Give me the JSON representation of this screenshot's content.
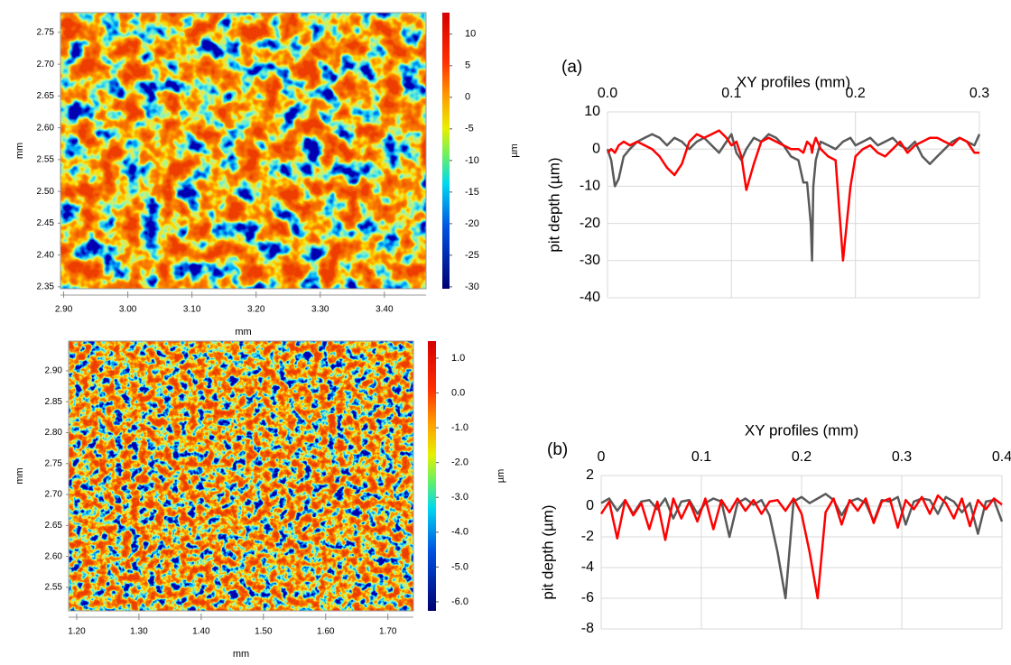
{
  "chart_data": [
    {
      "type": "heatmap",
      "xlabel": "mm",
      "ylabel": "mm",
      "clabel": "µm",
      "xlim": [
        2.895,
        3.465
      ],
      "ylim": [
        2.347,
        2.781
      ],
      "xticks": [
        {
          "value": 2.9,
          "label": "2.90"
        },
        {
          "value": 3,
          "label": "3.00"
        },
        {
          "value": 3.1,
          "label": "3.10"
        },
        {
          "value": 3.2,
          "label": "3.20"
        },
        {
          "value": 3.3,
          "label": "3.30"
        },
        {
          "value": 3.4,
          "label": "3.40"
        }
      ],
      "yticks": [
        2.35,
        {
          "value": 2.4,
          "label": "2.40"
        },
        2.45,
        {
          "value": 2.5,
          "label": "2.50"
        },
        2.55,
        {
          "value": 2.6,
          "label": "2.60"
        },
        2.65,
        {
          "value": 2.7,
          "label": "2.70"
        },
        2.75
      ],
      "clim": [
        -30.3,
        13.4
      ],
      "cticks": [
        10,
        5,
        0,
        -5,
        -10,
        -15,
        -20,
        -25,
        -30
      ]
    },
    {
      "type": "heatmap",
      "xlabel": "mm",
      "ylabel": "mm",
      "clabel": "µm",
      "xlim": [
        1.187,
        1.741
      ],
      "ylim": [
        2.512,
        2.948
      ],
      "xticks": [
        {
          "value": 1.2,
          "label": "1.20"
        },
        {
          "value": 1.3,
          "label": "1.30"
        },
        {
          "value": 1.4,
          "label": "1.40"
        },
        {
          "value": 1.5,
          "label": "1.50"
        },
        {
          "value": 1.6,
          "label": "1.60"
        },
        {
          "value": 1.7,
          "label": "1.70"
        }
      ],
      "yticks": [
        2.55,
        {
          "value": 2.6,
          "label": "2.60"
        },
        2.65,
        {
          "value": 2.7,
          "label": "2.70"
        },
        2.75,
        {
          "value": 2.8,
          "label": "2.80"
        },
        2.85,
        {
          "value": 2.9,
          "label": "2.90"
        }
      ],
      "clim": [
        -6.26,
        1.49
      ],
      "cticks": [
        {
          "value": 1,
          "label": "1.0"
        },
        {
          "value": 0,
          "label": "0.0"
        },
        {
          "value": -1,
          "label": "-1.0"
        },
        {
          "value": -2,
          "label": "-2.0"
        },
        {
          "value": -3,
          "label": "-3.0"
        },
        {
          "value": -4,
          "label": "-4.0"
        },
        {
          "value": -5,
          "label": "-5.0"
        },
        {
          "value": -6,
          "label": "-6.0"
        }
      ]
    },
    {
      "type": "line",
      "panel_label": "(a)",
      "xlabel": "XY profiles (mm)",
      "ylabel": "pit depth (µm)",
      "xlim": [
        0,
        0.3
      ],
      "ylim": [
        -40,
        10
      ],
      "xticks": [
        {
          "value": 0,
          "label": "0.0"
        },
        0.1,
        0.2,
        0.3
      ],
      "yticks": [
        -40,
        -30,
        -20,
        -10,
        0,
        10
      ],
      "grid": true,
      "x": [
        0,
        0.003,
        0.006,
        0.009,
        0.013,
        0.018,
        0.024,
        0.03,
        0.036,
        0.042,
        0.048,
        0.054,
        0.06,
        0.066,
        0.072,
        0.078,
        0.084,
        0.09,
        0.096,
        0.1,
        0.104,
        0.108,
        0.112,
        0.118,
        0.124,
        0.13,
        0.136,
        0.142,
        0.148,
        0.154,
        0.158,
        0.161,
        0.164,
        0.165,
        0.166,
        0.168,
        0.172,
        0.178,
        0.184,
        0.19,
        0.196,
        0.2,
        0.206,
        0.212,
        0.218,
        0.224,
        0.23,
        0.236,
        0.242,
        0.248,
        0.254,
        0.26,
        0.266,
        0.272,
        0.278,
        0.284,
        0.29,
        0.296,
        0.3
      ],
      "series": [
        {
          "color": "#595959",
          "values": [
            0,
            -3,
            -10,
            -8,
            -2,
            0,
            2,
            3,
            4,
            3,
            1,
            3,
            2,
            0,
            2,
            3,
            1,
            -1,
            2,
            4,
            -1,
            -3,
            0,
            3,
            2,
            4,
            3,
            1,
            -2,
            -3,
            -9,
            -9,
            -20,
            -30,
            -10,
            -3,
            2,
            1,
            0,
            2,
            3,
            1,
            2,
            3,
            1,
            2,
            3,
            1,
            0,
            2,
            -2,
            -4,
            -2,
            0,
            2,
            3,
            2,
            1,
            4
          ]
        },
        {
          "color": "#ff0000",
          "values": [
            -1,
            0,
            -1,
            1,
            2,
            1,
            2,
            1,
            0,
            -2,
            -5,
            -7,
            -4,
            2,
            4,
            3,
            4,
            5,
            3,
            1,
            2,
            -2,
            -11,
            -4,
            2,
            3,
            2,
            1,
            0,
            0,
            -1,
            2,
            1,
            -1,
            1,
            3,
            0,
            -2,
            -3,
            -30,
            -10,
            -2,
            0,
            1,
            -1,
            -2,
            0,
            2,
            -1,
            1,
            2,
            3,
            3,
            2,
            1,
            3,
            2,
            -1,
            -1
          ]
        }
      ]
    },
    {
      "type": "line",
      "panel_label": "(b)",
      "xlabel": "XY profiles (mm)",
      "ylabel": "pit depth (µm)",
      "xlim": [
        0,
        0.4
      ],
      "ylim": [
        -8,
        2
      ],
      "xticks": [
        0,
        0.1,
        0.2,
        0.3,
        0.4
      ],
      "yticks": [
        -8,
        -6,
        -4,
        -2,
        0,
        2
      ],
      "grid": true,
      "x": [
        0,
        0.008,
        0.016,
        0.024,
        0.032,
        0.04,
        0.048,
        0.056,
        0.064,
        0.072,
        0.08,
        0.088,
        0.096,
        0.104,
        0.112,
        0.12,
        0.128,
        0.136,
        0.144,
        0.152,
        0.16,
        0.168,
        0.176,
        0.184,
        0.192,
        0.2,
        0.208,
        0.216,
        0.224,
        0.232,
        0.24,
        0.248,
        0.256,
        0.264,
        0.272,
        0.28,
        0.288,
        0.296,
        0.304,
        0.312,
        0.32,
        0.328,
        0.336,
        0.344,
        0.352,
        0.36,
        0.368,
        0.376,
        0.384,
        0.392,
        0.4
      ],
      "series": [
        {
          "color": "#595959",
          "values": [
            0.2,
            0.5,
            -0.3,
            0.4,
            -0.5,
            0.3,
            0.4,
            -0.2,
            0.5,
            -0.8,
            0.3,
            0.4,
            -0.5,
            0.2,
            0.5,
            0.3,
            -2,
            0.2,
            0.5,
            0.1,
            0.4,
            -0.6,
            -3,
            -6,
            0.3,
            0.6,
            0.2,
            0.5,
            0.8,
            0.4,
            -0.6,
            0.3,
            0.5,
            0.2,
            -1,
            0.4,
            0.3,
            0.6,
            -1.2,
            0.3,
            0.5,
            0.4,
            -0.5,
            0.6,
            0.3,
            -0.4,
            0.2,
            -1.8,
            0.3,
            0.4,
            -1
          ]
        },
        {
          "color": "#ff0000",
          "values": [
            -0.5,
            0.3,
            -2.1,
            0.4,
            -0.6,
            0.2,
            -1.5,
            0.3,
            -2.2,
            0.5,
            -0.8,
            0.3,
            -1,
            0.5,
            -1.5,
            0.4,
            -0.4,
            0.5,
            -0.3,
            0.4,
            -0.5,
            0.3,
            0.4,
            -0.3,
            0.5,
            -0.5,
            -3,
            -6,
            -0.4,
            0.5,
            -1.2,
            0.4,
            -0.3,
            0.5,
            -1.1,
            0.3,
            0.5,
            -1.4,
            0.4,
            -0.2,
            0.6,
            -0.5,
            0.7,
            0.2,
            -0.8,
            0.5,
            -1.3,
            0.4,
            -0.2,
            0.5,
            0.1
          ]
        }
      ]
    }
  ]
}
